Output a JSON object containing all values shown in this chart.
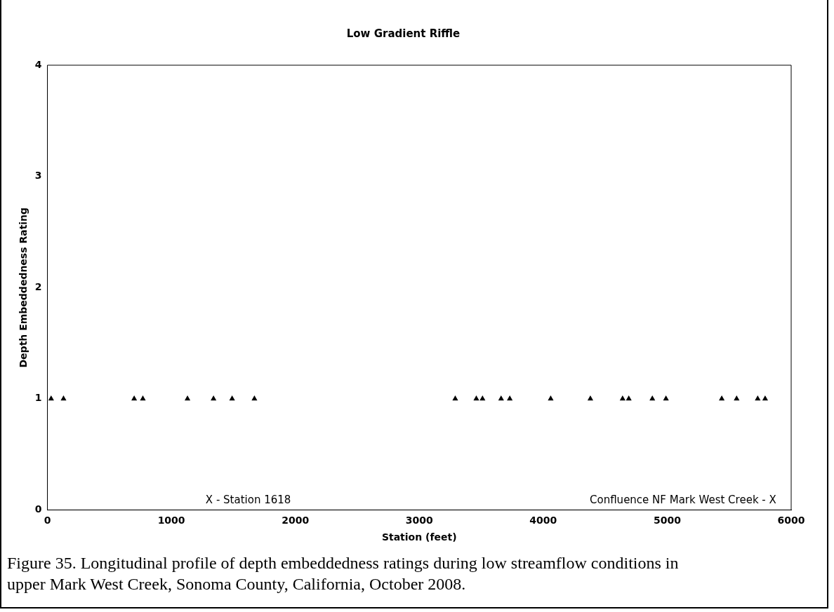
{
  "chart_data": {
    "type": "scatter",
    "title": "Low Gradient Riffle",
    "xlabel": "Station (feet)",
    "ylabel": "Depth Embeddedness Rating",
    "x": [
      30,
      130,
      700,
      770,
      1130,
      1340,
      1490,
      1670,
      3290,
      3460,
      3510,
      3660,
      3730,
      4060,
      4380,
      4640,
      4690,
      4880,
      4990,
      5440,
      5560,
      5730,
      5790
    ],
    "series": [
      {
        "color": "#000000",
        "values": [
          1,
          1,
          1,
          1,
          1,
          1,
          1,
          1,
          1,
          1,
          1,
          1,
          1,
          1,
          1,
          1,
          1,
          1,
          1,
          1,
          1,
          1,
          1
        ]
      }
    ],
    "xlim": [
      0,
      6000
    ],
    "xticks": [
      0,
      1000,
      2000,
      3000,
      4000,
      5000,
      6000
    ],
    "ylim": [
      0,
      4
    ],
    "yticks": [
      0,
      1,
      2,
      3,
      4
    ],
    "grid": false,
    "legend": false,
    "marker": "triangle",
    "annotations": [
      "X - Station 1618",
      "Confluence NF Mark West Creek - X",
      "Figure 35.  Longitudinal profile of depth embeddedness ratings during low streamflow conditions in upper Mark West Creek, Sonoma County, California, October 2008."
    ]
  }
}
